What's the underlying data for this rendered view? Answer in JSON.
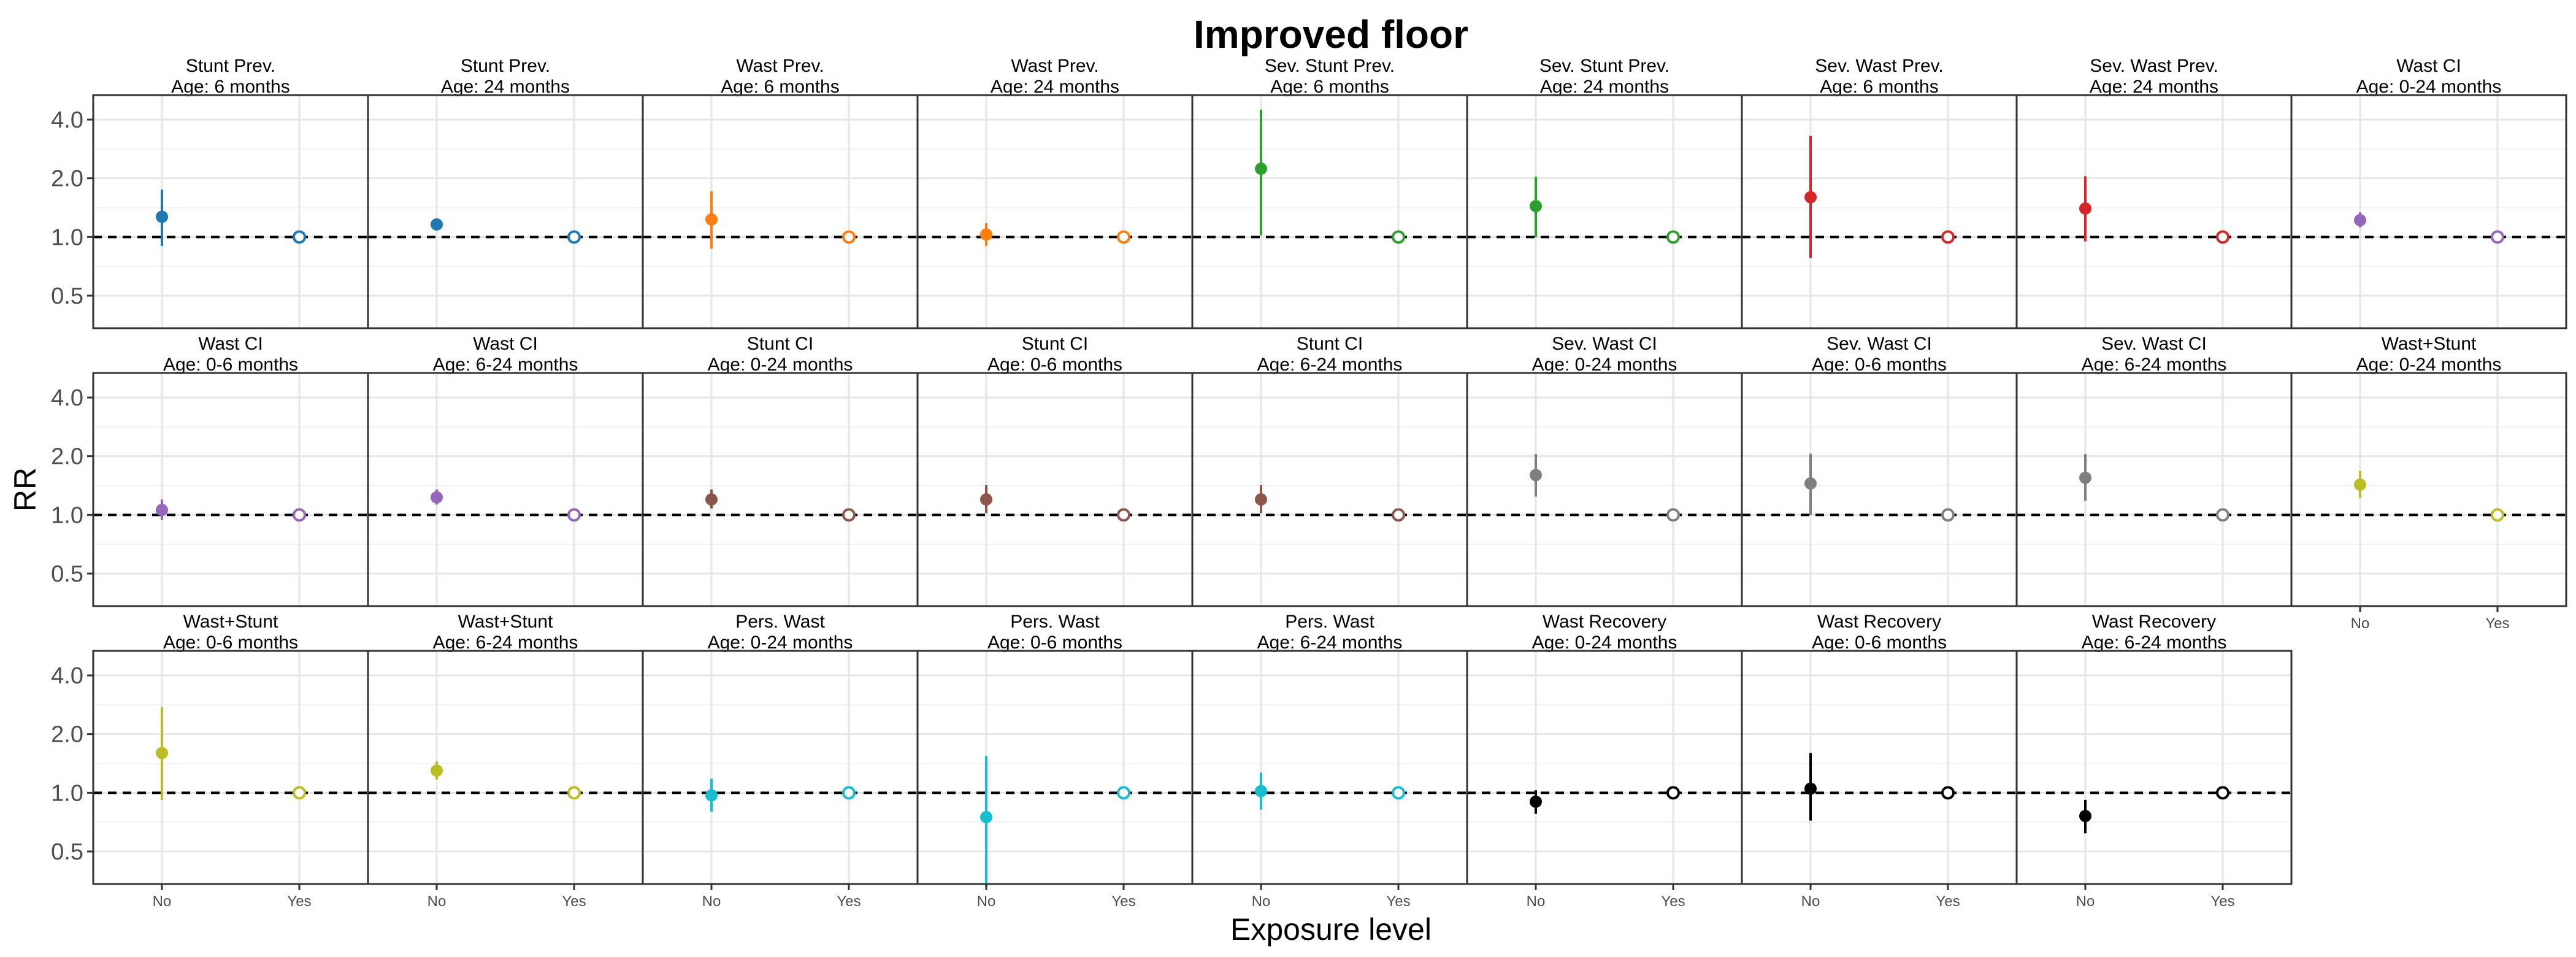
{
  "chart_data": {
    "type": "scatter",
    "title": "Improved floor",
    "xlabel": "Exposure level",
    "ylabel": "RR",
    "y_scale": "log",
    "y_ticks": [
      "0.5",
      "1.0",
      "2.0",
      "4.0"
    ],
    "y_tick_values": [
      0.5,
      1.0,
      2.0,
      4.0
    ],
    "x_categories": [
      "No",
      "Yes"
    ],
    "reference_line": 1.0,
    "panels": [
      {
        "strip": [
          "Stunt Prev.",
          "Age: 6 months"
        ],
        "color": "#1f77b4",
        "no": {
          "rr": 1.27,
          "lo": 0.9,
          "hi": 1.75
        },
        "yes": {
          "rr": 1.0
        }
      },
      {
        "strip": [
          "Stunt Prev.",
          "Age: 24 months"
        ],
        "color": "#1f77b4",
        "no": {
          "rr": 1.16,
          "lo": 1.11,
          "hi": 1.22
        },
        "yes": {
          "rr": 1.0
        }
      },
      {
        "strip": [
          "Wast Prev.",
          "Age: 6 months"
        ],
        "color": "#ff7f0e",
        "no": {
          "rr": 1.23,
          "lo": 0.87,
          "hi": 1.72
        },
        "yes": {
          "rr": 1.0
        }
      },
      {
        "strip": [
          "Wast Prev.",
          "Age: 24 months"
        ],
        "color": "#ff7f0e",
        "no": {
          "rr": 1.03,
          "lo": 0.9,
          "hi": 1.18
        },
        "yes": {
          "rr": 1.0
        }
      },
      {
        "strip": [
          "Sev. Stunt Prev.",
          "Age: 6 months"
        ],
        "color": "#2ca02c",
        "no": {
          "rr": 2.24,
          "lo": 1.02,
          "hi": 4.5
        },
        "yes": {
          "rr": 1.0
        }
      },
      {
        "strip": [
          "Sev. Stunt Prev.",
          "Age: 24 months"
        ],
        "color": "#2ca02c",
        "no": {
          "rr": 1.44,
          "lo": 1.0,
          "hi": 2.04
        },
        "yes": {
          "rr": 1.0
        }
      },
      {
        "strip": [
          "Sev. Wast Prev.",
          "Age: 6 months"
        ],
        "color": "#d62728",
        "no": {
          "rr": 1.6,
          "lo": 0.78,
          "hi": 3.3
        },
        "yes": {
          "rr": 1.0
        }
      },
      {
        "strip": [
          "Sev. Wast Prev.",
          "Age: 24 months"
        ],
        "color": "#d62728",
        "no": {
          "rr": 1.4,
          "lo": 0.95,
          "hi": 2.05
        },
        "yes": {
          "rr": 1.0
        }
      },
      {
        "strip": [
          "Wast CI",
          "Age: 0-24 months"
        ],
        "color": "#9467bd",
        "no": {
          "rr": 1.22,
          "lo": 1.12,
          "hi": 1.34
        },
        "yes": {
          "rr": 1.0
        }
      },
      {
        "strip": [
          "Wast CI",
          "Age: 0-6 months"
        ],
        "color": "#9467bd",
        "no": {
          "rr": 1.06,
          "lo": 0.94,
          "hi": 1.2
        },
        "yes": {
          "rr": 1.0
        }
      },
      {
        "strip": [
          "Wast CI",
          "Age: 6-24 months"
        ],
        "color": "#9467bd",
        "no": {
          "rr": 1.23,
          "lo": 1.13,
          "hi": 1.35
        },
        "yes": {
          "rr": 1.0
        }
      },
      {
        "strip": [
          "Stunt CI",
          "Age: 0-24 months"
        ],
        "color": "#8c564b",
        "no": {
          "rr": 1.2,
          "lo": 1.08,
          "hi": 1.35
        },
        "yes": {
          "rr": 1.0
        }
      },
      {
        "strip": [
          "Stunt CI",
          "Age: 0-6 months"
        ],
        "color": "#8c564b",
        "no": {
          "rr": 1.2,
          "lo": 1.02,
          "hi": 1.42
        },
        "yes": {
          "rr": 1.0
        }
      },
      {
        "strip": [
          "Stunt CI",
          "Age: 6-24 months"
        ],
        "color": "#8c564b",
        "no": {
          "rr": 1.2,
          "lo": 1.02,
          "hi": 1.42
        },
        "yes": {
          "rr": 1.0
        }
      },
      {
        "strip": [
          "Sev. Wast CI",
          "Age: 0-24 months"
        ],
        "color": "#7f7f7f",
        "no": {
          "rr": 1.6,
          "lo": 1.24,
          "hi": 2.05
        },
        "yes": {
          "rr": 1.0
        }
      },
      {
        "strip": [
          "Sev. Wast CI",
          "Age: 0-6 months"
        ],
        "color": "#7f7f7f",
        "no": {
          "rr": 1.45,
          "lo": 1.0,
          "hi": 2.06
        },
        "yes": {
          "rr": 1.0
        }
      },
      {
        "strip": [
          "Sev. Wast CI",
          "Age: 6-24 months"
        ],
        "color": "#7f7f7f",
        "no": {
          "rr": 1.55,
          "lo": 1.18,
          "hi": 2.05
        },
        "yes": {
          "rr": 1.0
        }
      },
      {
        "strip": [
          "Wast+Stunt",
          "Age: 0-24 months"
        ],
        "color": "#bcbd22",
        "no": {
          "rr": 1.43,
          "lo": 1.22,
          "hi": 1.68
        },
        "yes": {
          "rr": 1.0
        }
      },
      {
        "strip": [
          "Wast+Stunt",
          "Age: 0-6 months"
        ],
        "color": "#bcbd22",
        "no": {
          "rr": 1.6,
          "lo": 0.92,
          "hi": 2.75
        },
        "yes": {
          "rr": 1.0
        }
      },
      {
        "strip": [
          "Wast+Stunt",
          "Age: 6-24 months"
        ],
        "color": "#bcbd22",
        "no": {
          "rr": 1.3,
          "lo": 1.17,
          "hi": 1.45
        },
        "yes": {
          "rr": 1.0
        }
      },
      {
        "strip": [
          "Pers. Wast",
          "Age: 0-24 months"
        ],
        "color": "#17becf",
        "no": {
          "rr": 0.97,
          "lo": 0.8,
          "hi": 1.18
        },
        "yes": {
          "rr": 1.0
        }
      },
      {
        "strip": [
          "Pers. Wast",
          "Age: 0-6 months"
        ],
        "color": "#17becf",
        "no": {
          "rr": 0.75,
          "lo": 0.33,
          "hi": 1.55
        },
        "yes": {
          "rr": 1.0
        }
      },
      {
        "strip": [
          "Pers. Wast",
          "Age: 6-24 months"
        ],
        "color": "#17becf",
        "no": {
          "rr": 1.02,
          "lo": 0.82,
          "hi": 1.27
        },
        "yes": {
          "rr": 1.0
        }
      },
      {
        "strip": [
          "Wast Recovery",
          "Age: 0-24 months"
        ],
        "color": "#000000",
        "no": {
          "rr": 0.9,
          "lo": 0.78,
          "hi": 1.03
        },
        "yes": {
          "rr": 1.0
        }
      },
      {
        "strip": [
          "Wast Recovery",
          "Age: 0-6 months"
        ],
        "color": "#000000",
        "no": {
          "rr": 1.05,
          "lo": 0.72,
          "hi": 1.6
        },
        "yes": {
          "rr": 1.0
        }
      },
      {
        "strip": [
          "Wast Recovery",
          "Age: 6-24 months"
        ],
        "color": "#000000",
        "no": {
          "rr": 0.76,
          "lo": 0.62,
          "hi": 0.92
        },
        "yes": {
          "rr": 1.0
        }
      }
    ]
  }
}
